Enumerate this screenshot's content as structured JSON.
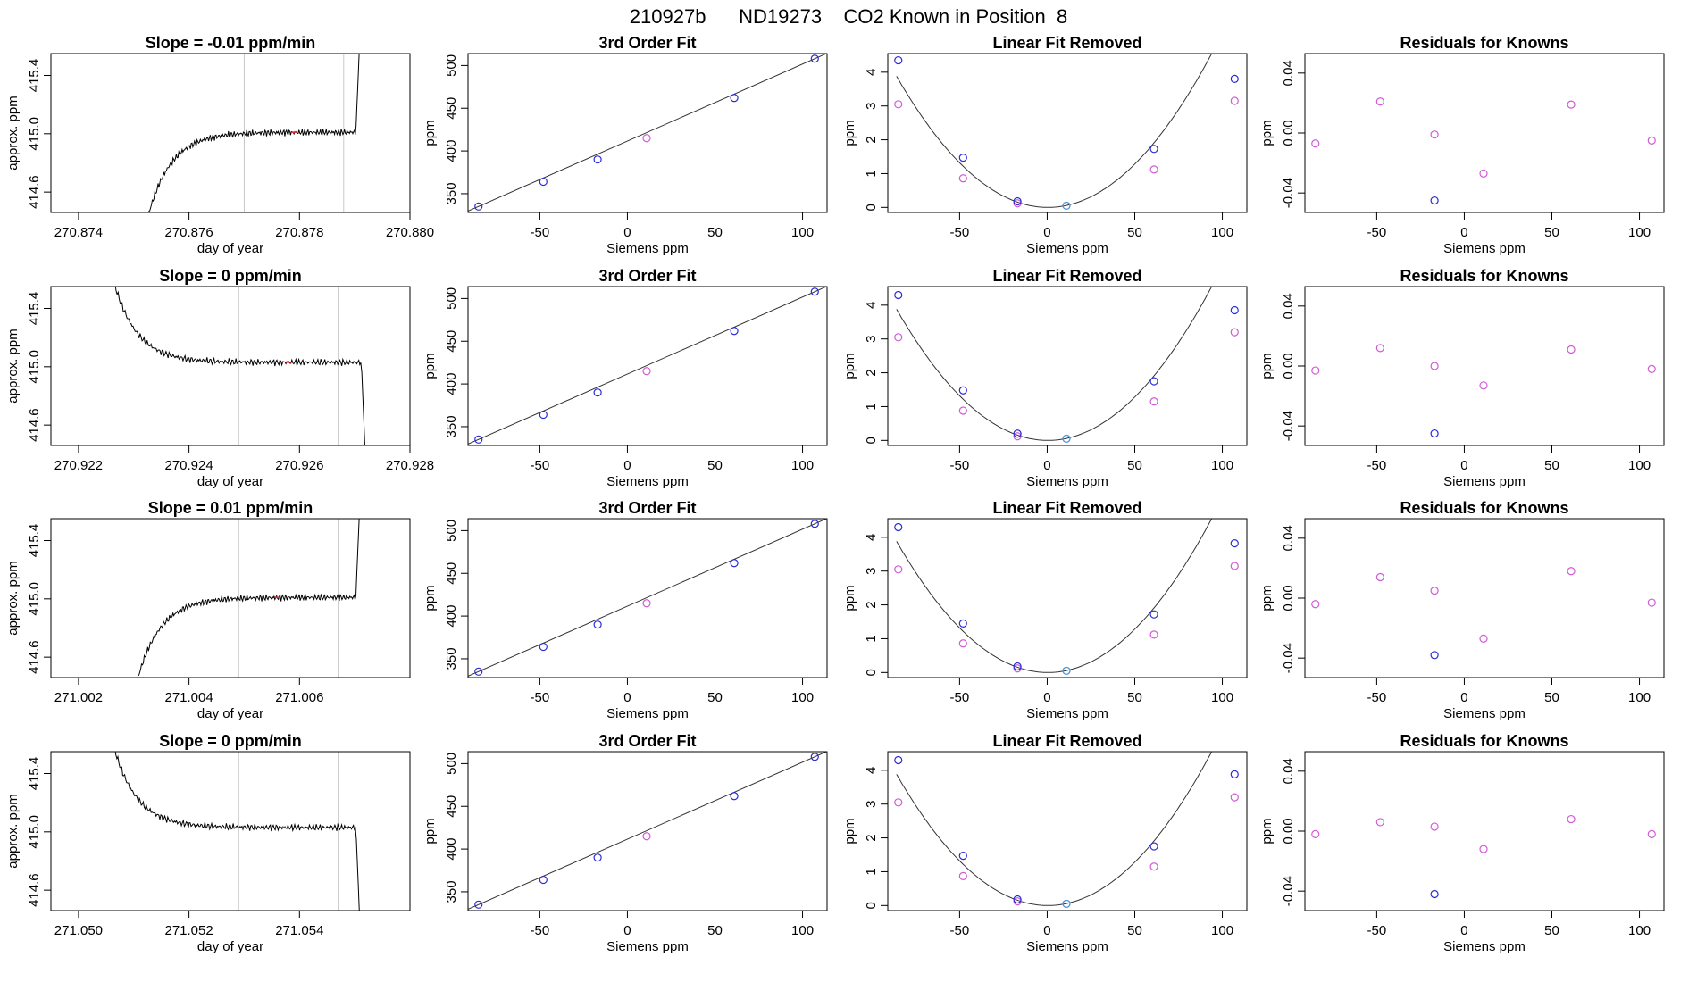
{
  "figure_title": "210927b      ND19273    CO2 Known in Position  8",
  "colors": {
    "fit_point": "#2b2bd6",
    "removed_point": "#d25ad6",
    "mid_point": "#3aa0e0",
    "trace": "#000000",
    "window_line": "#c8c8c8",
    "marker": "#e03030"
  },
  "chart_data": [
    {
      "type": "line",
      "panel": "timeseries",
      "row": 0,
      "title": "Slope =  -0.01  ppm/min",
      "xlabel": "day of year",
      "ylabel": "approx. ppm",
      "xlim": [
        270.8735,
        270.88
      ],
      "ylim": [
        414.46,
        415.55
      ],
      "xticks": [
        "270.874",
        "270.876",
        "270.878",
        "270.880"
      ],
      "yticks": [
        "414.6",
        "415.0",
        "415.4"
      ],
      "window": [
        270.877,
        270.8788
      ],
      "shape": "rise",
      "t_start": 270.8752,
      "t_end": 270.8791,
      "plateau": 415.01,
      "marker_x": 270.8779
    },
    {
      "type": "scatter",
      "panel": "fit",
      "row": 0,
      "title": "3rd Order Fit",
      "xlabel": "Siemens ppm",
      "ylabel": "ppm",
      "xlim": [
        -91,
        114
      ],
      "ylim": [
        328,
        514
      ],
      "xticks": [
        "-50",
        "0",
        "50",
        "100"
      ],
      "yticks": [
        "350",
        "400",
        "450",
        "500"
      ],
      "x": [
        -85,
        -48,
        -17,
        11,
        61,
        107
      ],
      "y": [
        335,
        364,
        390,
        415,
        462,
        508
      ],
      "point_colors": [
        "fit",
        "fit",
        "fit",
        "removed",
        "fit",
        "fit"
      ]
    },
    {
      "type": "scatter",
      "panel": "linear_removed",
      "row": 0,
      "title": "Linear Fit Removed",
      "xlabel": "Siemens ppm",
      "ylabel": "ppm",
      "xlim": [
        -91,
        114
      ],
      "ylim": [
        -0.15,
        4.55
      ],
      "xticks": [
        "-50",
        "0",
        "50",
        "100"
      ],
      "yticks": [
        "0",
        "1",
        "2",
        "3",
        "4"
      ],
      "x": [
        -85,
        -48,
        -17,
        11,
        61,
        107
      ],
      "y_fit": [
        4.35,
        1.47,
        0.18,
        0.05,
        1.73,
        3.8
      ],
      "y_removed": [
        3.05,
        0.86,
        0.12,
        0.05,
        1.12,
        3.15
      ],
      "curve_coef": [
        0.00052,
        -0.0004
      ]
    },
    {
      "type": "scatter",
      "panel": "residuals",
      "row": 0,
      "title": "Residuals for Knowns",
      "xlabel": "Siemens ppm",
      "ylabel": "ppm",
      "xlim": [
        -91,
        114
      ],
      "ylim": [
        -0.053,
        0.053
      ],
      "xticks": [
        "-50",
        "0",
        "50",
        "100"
      ],
      "yticks": [
        "-0.04",
        "0.00",
        "0.04"
      ],
      "x": [
        -85,
        -48,
        -17,
        11,
        61,
        107
      ],
      "y": [
        -0.007,
        0.021,
        -0.001,
        -0.027,
        0.019,
        -0.005
      ],
      "blue": {
        "x": -17,
        "y": -0.045
      }
    },
    {
      "type": "line",
      "panel": "timeseries",
      "row": 1,
      "title": "Slope =  0  ppm/min",
      "xlabel": "day of year",
      "ylabel": "approx. ppm",
      "xlim": [
        270.9215,
        270.928
      ],
      "ylim": [
        414.46,
        415.55
      ],
      "xticks": [
        "270.922",
        "270.924",
        "270.926",
        "270.928"
      ],
      "yticks": [
        "414.6",
        "415.0",
        "415.4"
      ],
      "window": [
        270.9249,
        270.9267
      ],
      "shape": "fall",
      "t_start": 270.9225,
      "t_end": 270.9272,
      "plateau": 415.03,
      "marker_x": 270.9258
    },
    {
      "type": "scatter",
      "panel": "fit",
      "row": 1,
      "title": "3rd Order Fit",
      "xlabel": "Siemens ppm",
      "ylabel": "ppm",
      "xlim": [
        -91,
        114
      ],
      "ylim": [
        328,
        514
      ],
      "xticks": [
        "-50",
        "0",
        "50",
        "100"
      ],
      "yticks": [
        "350",
        "400",
        "450",
        "500"
      ],
      "x": [
        -85,
        -48,
        -17,
        11,
        61,
        107
      ],
      "y": [
        335,
        364,
        390,
        415,
        462,
        508
      ],
      "point_colors": [
        "fit",
        "fit",
        "fit",
        "removed",
        "fit",
        "fit"
      ]
    },
    {
      "type": "scatter",
      "panel": "linear_removed",
      "row": 1,
      "title": "Linear Fit Removed",
      "xlabel": "Siemens ppm",
      "ylabel": "ppm",
      "xlim": [
        -91,
        114
      ],
      "ylim": [
        -0.15,
        4.55
      ],
      "xticks": [
        "-50",
        "0",
        "50",
        "100"
      ],
      "yticks": [
        "0",
        "1",
        "2",
        "3",
        "4"
      ],
      "x": [
        -85,
        -48,
        -17,
        11,
        61,
        107
      ],
      "y_fit": [
        4.3,
        1.48,
        0.2,
        0.05,
        1.75,
        3.85
      ],
      "y_removed": [
        3.05,
        0.88,
        0.12,
        0.05,
        1.15,
        3.2
      ],
      "curve_coef": [
        0.00052,
        -0.0004
      ]
    },
    {
      "type": "scatter",
      "panel": "residuals",
      "row": 1,
      "title": "Residuals for Knowns",
      "xlabel": "Siemens ppm",
      "ylabel": "ppm",
      "xlim": [
        -91,
        114
      ],
      "ylim": [
        -0.053,
        0.053
      ],
      "xticks": [
        "-50",
        "0",
        "50",
        "100"
      ],
      "yticks": [
        "-0.04",
        "0.00",
        "0.04"
      ],
      "x": [
        -85,
        -48,
        -17,
        11,
        61,
        107
      ],
      "y": [
        -0.003,
        0.012,
        0.0,
        -0.013,
        0.011,
        -0.002
      ],
      "blue": {
        "x": -17,
        "y": -0.045
      }
    },
    {
      "type": "line",
      "panel": "timeseries",
      "row": 2,
      "title": "Slope =  0.01  ppm/min",
      "xlabel": "day of year",
      "ylabel": "approx. ppm",
      "xlim": [
        271.0015,
        271.008
      ],
      "ylim": [
        414.46,
        415.55
      ],
      "xticks": [
        "271.002",
        "271.004",
        "271.006"
      ],
      "yticks": [
        "414.6",
        "415.0",
        "415.4"
      ],
      "window": [
        271.0049,
        271.0067
      ],
      "shape": "rise",
      "t_start": 271.003,
      "t_end": 271.0071,
      "plateau": 415.01,
      "marker_x": 271.0056
    },
    {
      "type": "scatter",
      "panel": "fit",
      "row": 2,
      "title": "3rd Order Fit",
      "xlabel": "Siemens ppm",
      "ylabel": "ppm",
      "xlim": [
        -91,
        114
      ],
      "ylim": [
        328,
        514
      ],
      "xticks": [
        "-50",
        "0",
        "50",
        "100"
      ],
      "yticks": [
        "350",
        "400",
        "450",
        "500"
      ],
      "x": [
        -85,
        -48,
        -17,
        11,
        61,
        107
      ],
      "y": [
        335,
        364,
        390,
        415,
        462,
        508
      ],
      "point_colors": [
        "fit",
        "fit",
        "fit",
        "removed",
        "fit",
        "fit"
      ]
    },
    {
      "type": "scatter",
      "panel": "linear_removed",
      "row": 2,
      "title": "Linear Fit Removed",
      "xlabel": "Siemens ppm",
      "ylabel": "ppm",
      "xlim": [
        -91,
        114
      ],
      "ylim": [
        -0.15,
        4.55
      ],
      "xticks": [
        "-50",
        "0",
        "50",
        "100"
      ],
      "yticks": [
        "0",
        "1",
        "2",
        "3",
        "4"
      ],
      "x": [
        -85,
        -48,
        -17,
        11,
        61,
        107
      ],
      "y_fit": [
        4.3,
        1.45,
        0.18,
        0.05,
        1.72,
        3.82
      ],
      "y_removed": [
        3.05,
        0.86,
        0.12,
        0.05,
        1.12,
        3.15
      ],
      "curve_coef": [
        0.00052,
        -0.0004
      ]
    },
    {
      "type": "scatter",
      "panel": "residuals",
      "row": 2,
      "title": "Residuals for Knowns",
      "xlabel": "Siemens ppm",
      "ylabel": "ppm",
      "xlim": [
        -91,
        114
      ],
      "ylim": [
        -0.053,
        0.053
      ],
      "xticks": [
        "-50",
        "0",
        "50",
        "100"
      ],
      "yticks": [
        "-0.04",
        "0.00",
        "0.04"
      ],
      "x": [
        -85,
        -48,
        -17,
        11,
        61,
        107
      ],
      "y": [
        -0.004,
        0.014,
        0.005,
        -0.027,
        0.018,
        -0.003
      ],
      "blue": {
        "x": -17,
        "y": -0.038
      }
    },
    {
      "type": "line",
      "panel": "timeseries",
      "row": 3,
      "title": "Slope =  0  ppm/min",
      "xlabel": "day of year",
      "ylabel": "approx. ppm",
      "xlim": [
        271.0495,
        271.056
      ],
      "ylim": [
        414.46,
        415.55
      ],
      "xticks": [
        "271.050",
        "271.052",
        "271.054"
      ],
      "yticks": [
        "414.6",
        "415.0",
        "415.4"
      ],
      "window": [
        271.0529,
        271.0547
      ],
      "shape": "fall",
      "t_start": 271.0505,
      "t_end": 271.0551,
      "plateau": 415.03,
      "marker_x": 271.0537
    },
    {
      "type": "scatter",
      "panel": "fit",
      "row": 3,
      "title": "3rd Order Fit",
      "xlabel": "Siemens ppm",
      "ylabel": "ppm",
      "xlim": [
        -91,
        114
      ],
      "ylim": [
        328,
        514
      ],
      "xticks": [
        "-50",
        "0",
        "50",
        "100"
      ],
      "yticks": [
        "350",
        "400",
        "450",
        "500"
      ],
      "x": [
        -85,
        -48,
        -17,
        11,
        61,
        107
      ],
      "y": [
        335,
        364,
        390,
        415,
        462,
        508
      ],
      "point_colors": [
        "fit",
        "fit",
        "fit",
        "removed",
        "fit",
        "fit"
      ]
    },
    {
      "type": "scatter",
      "panel": "linear_removed",
      "row": 3,
      "title": "Linear Fit Removed",
      "xlabel": "Siemens ppm",
      "ylabel": "ppm",
      "xlim": [
        -91,
        114
      ],
      "ylim": [
        -0.15,
        4.55
      ],
      "xticks": [
        "-50",
        "0",
        "50",
        "100"
      ],
      "yticks": [
        "0",
        "1",
        "2",
        "3",
        "4"
      ],
      "x": [
        -85,
        -48,
        -17,
        11,
        61,
        107
      ],
      "y_fit": [
        4.3,
        1.47,
        0.18,
        0.05,
        1.75,
        3.88
      ],
      "y_removed": [
        3.05,
        0.87,
        0.12,
        0.05,
        1.15,
        3.2
      ],
      "curve_coef": [
        0.00052,
        -0.0004
      ]
    },
    {
      "type": "scatter",
      "panel": "residuals",
      "row": 3,
      "title": "Residuals for Knowns",
      "xlabel": "Siemens ppm",
      "ylabel": "ppm",
      "xlim": [
        -91,
        114
      ],
      "ylim": [
        -0.053,
        0.053
      ],
      "xticks": [
        "-50",
        "0",
        "50",
        "100"
      ],
      "yticks": [
        "-0.04",
        "0.00",
        "0.04"
      ],
      "x": [
        -85,
        -48,
        -17,
        11,
        61,
        107
      ],
      "y": [
        -0.002,
        0.006,
        0.003,
        -0.012,
        0.008,
        -0.002
      ],
      "blue": {
        "x": -17,
        "y": -0.042
      }
    }
  ]
}
